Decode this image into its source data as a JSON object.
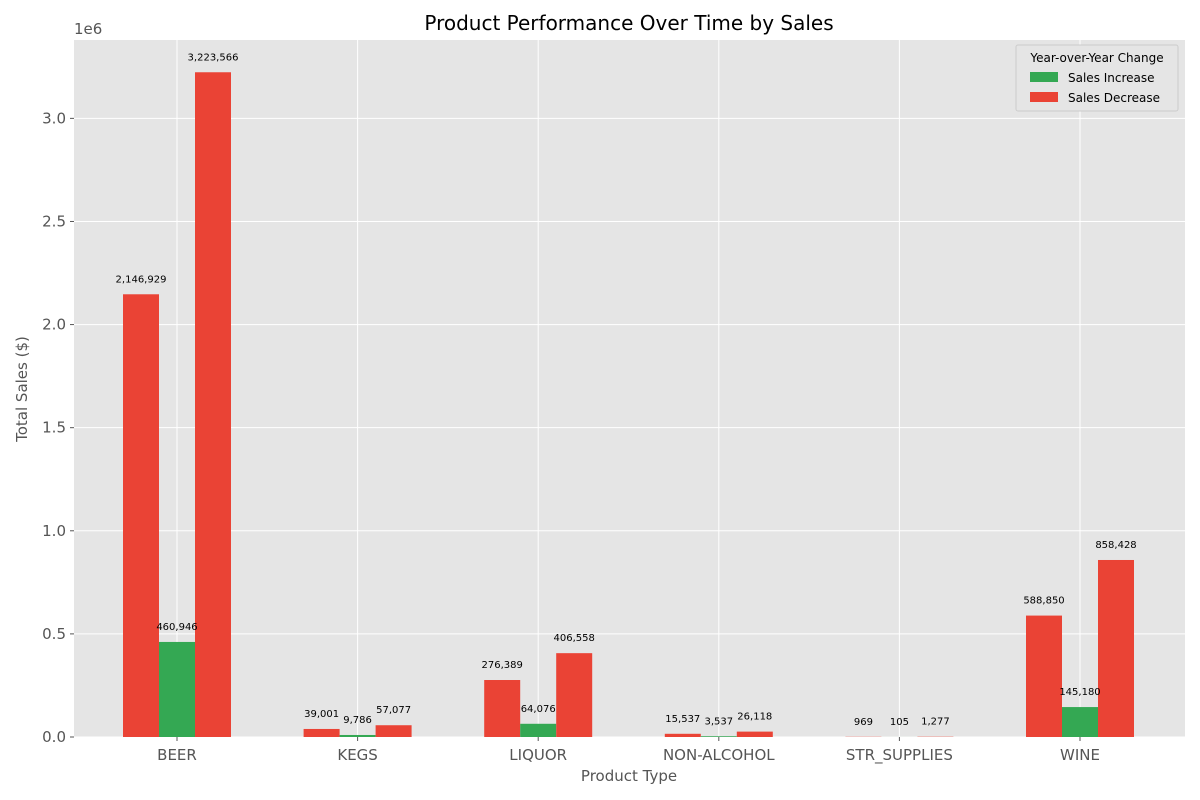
{
  "chart_data": {
    "type": "bar",
    "title": "Product Performance Over Time by Sales",
    "xlabel": "Product Type",
    "ylabel": "Total Sales ($)",
    "y_offset_label": "1e6",
    "ylim": [
      0,
      3.38
    ],
    "y_ticks": [
      0.0,
      0.5,
      1.0,
      1.5,
      2.0,
      2.5,
      3.0
    ],
    "y_tick_labels": [
      "0.0",
      "0.5",
      "1.0",
      "1.5",
      "2.0",
      "2.5",
      "3.0"
    ],
    "categories": [
      "BEER",
      "KEGS",
      "LIQUOR",
      "NON-ALCOHOL",
      "STR_SUPPLIES",
      "WINE"
    ],
    "bar_groups": [
      {
        "category": "BEER",
        "bars": [
          {
            "value": 2146929,
            "label": "2,146,929",
            "color": "#ea4335"
          },
          {
            "value": 460946,
            "label": "460,946",
            "color": "#34a853"
          },
          {
            "value": 3223566,
            "label": "3,223,566",
            "color": "#ea4335"
          }
        ]
      },
      {
        "category": "KEGS",
        "bars": [
          {
            "value": 39001,
            "label": "39,001",
            "color": "#ea4335"
          },
          {
            "value": 9786,
            "label": "9,786",
            "color": "#34a853"
          },
          {
            "value": 57077,
            "label": "57,077",
            "color": "#ea4335"
          }
        ]
      },
      {
        "category": "LIQUOR",
        "bars": [
          {
            "value": 276389,
            "label": "276,389",
            "color": "#ea4335"
          },
          {
            "value": 64076,
            "label": "64,076",
            "color": "#34a853"
          },
          {
            "value": 406558,
            "label": "406,558",
            "color": "#ea4335"
          }
        ]
      },
      {
        "category": "NON-ALCOHOL",
        "bars": [
          {
            "value": 15537,
            "label": "15,537",
            "color": "#ea4335"
          },
          {
            "value": 3537,
            "label": "3,537",
            "color": "#34a853"
          },
          {
            "value": 26118,
            "label": "26,118",
            "color": "#ea4335"
          }
        ]
      },
      {
        "category": "STR_SUPPLIES",
        "bars": [
          {
            "value": 969,
            "label": "969",
            "color": "#ea4335"
          },
          {
            "value": 105,
            "label": "105",
            "color": "#34a853"
          },
          {
            "value": 1277,
            "label": "1,277",
            "color": "#ea4335"
          }
        ]
      },
      {
        "category": "WINE",
        "bars": [
          {
            "value": 588850,
            "label": "588,850",
            "color": "#ea4335"
          },
          {
            "value": 145180,
            "label": "145,180",
            "color": "#34a853"
          },
          {
            "value": 858428,
            "label": "858,428",
            "color": "#ea4335"
          }
        ]
      }
    ],
    "legend": {
      "title": "Year-over-Year Change",
      "placement": "top-right",
      "entries": [
        {
          "label": "Sales Increase",
          "color": "#34a853"
        },
        {
          "label": "Sales Decrease",
          "color": "#ea4335"
        }
      ]
    },
    "grid": true,
    "colors": {
      "background": "#e5e5e5",
      "grid": "#ffffff",
      "increase": "#34a853",
      "decrease": "#ea4335"
    }
  }
}
